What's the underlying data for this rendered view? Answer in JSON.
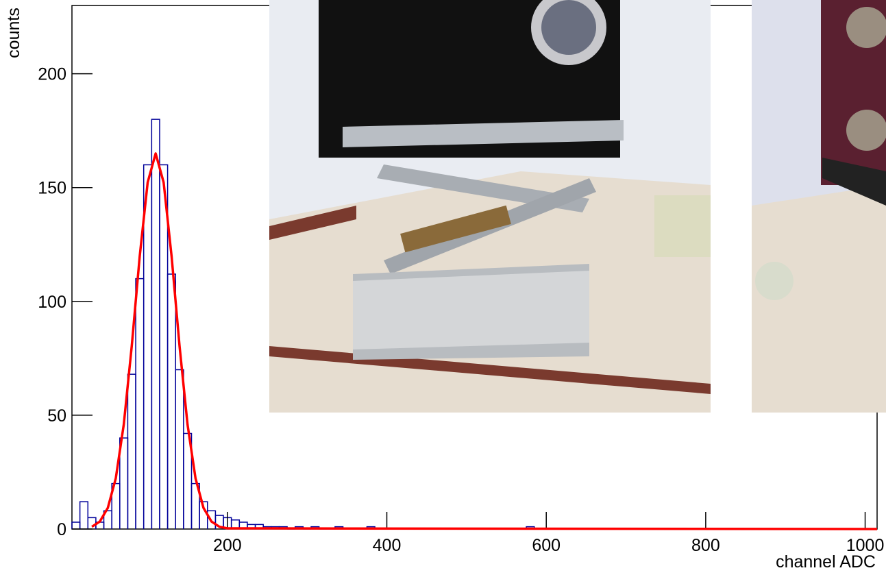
{
  "chart_data": {
    "type": "histogram",
    "y_label": "counts",
    "x_label": "channel ADC",
    "xlim": [
      5,
      1015
    ],
    "ylim": [
      0,
      230
    ],
    "xticks": [
      200,
      400,
      600,
      800,
      1000
    ],
    "yticks": [
      0,
      50,
      100,
      150,
      200
    ],
    "color": "#000099",
    "bins": [
      5,
      15,
      25,
      35,
      45,
      55,
      65,
      75,
      85,
      95,
      105,
      115,
      125,
      135,
      145,
      155,
      165,
      175,
      185,
      195,
      205,
      215,
      225,
      235,
      245,
      255,
      265,
      275,
      285,
      295,
      305,
      315,
      325,
      335,
      345,
      355,
      365,
      375,
      385,
      395,
      405,
      415,
      425,
      435,
      445,
      455,
      465,
      475,
      485,
      495,
      505,
      515,
      525,
      535,
      545,
      555,
      565,
      575,
      585,
      595,
      605,
      615,
      625,
      635,
      645,
      655,
      665,
      675,
      685,
      695,
      705,
      715,
      725,
      735,
      745,
      755,
      765,
      775,
      785,
      795,
      805,
      815,
      825,
      835,
      845,
      855,
      865,
      875,
      885,
      895,
      905,
      915,
      925,
      935,
      945,
      955,
      965,
      975,
      985,
      995,
      1005,
      1015
    ],
    "values": [
      3,
      12,
      5,
      3,
      8,
      20,
      40,
      68,
      110,
      160,
      180,
      160,
      112,
      70,
      42,
      20,
      12,
      8,
      6,
      5,
      4,
      3,
      2,
      2,
      1,
      1,
      1,
      0,
      1,
      0,
      1,
      0,
      0,
      1,
      0,
      0,
      0,
      1,
      0,
      0,
      0,
      0,
      0,
      0,
      0,
      0,
      0,
      0,
      0,
      0,
      0,
      0,
      0,
      0,
      0,
      0,
      0,
      1,
      0,
      0,
      0,
      0,
      0,
      0,
      0,
      0,
      0,
      0,
      0,
      0,
      0,
      0,
      0,
      0,
      0,
      0,
      0,
      0,
      0,
      0,
      0,
      0,
      0,
      0,
      0,
      0,
      0,
      0,
      0,
      0,
      0,
      0,
      0,
      0,
      0,
      0,
      0,
      0,
      0,
      0,
      0
    ],
    "fit": {
      "type": "line",
      "color": "#ff0000",
      "x": [
        30,
        40,
        50,
        60,
        70,
        80,
        90,
        100,
        110,
        120,
        130,
        140,
        150,
        160,
        170,
        180,
        190,
        200,
        1015
      ],
      "values": [
        1.0,
        3.3,
        9.3,
        22.3,
        45.9,
        80.3,
        119.8,
        152.3,
        165,
        152.3,
        119.8,
        80.3,
        45.9,
        22.3,
        9.3,
        3.3,
        1.0,
        0.3,
        0
      ]
    }
  }
}
